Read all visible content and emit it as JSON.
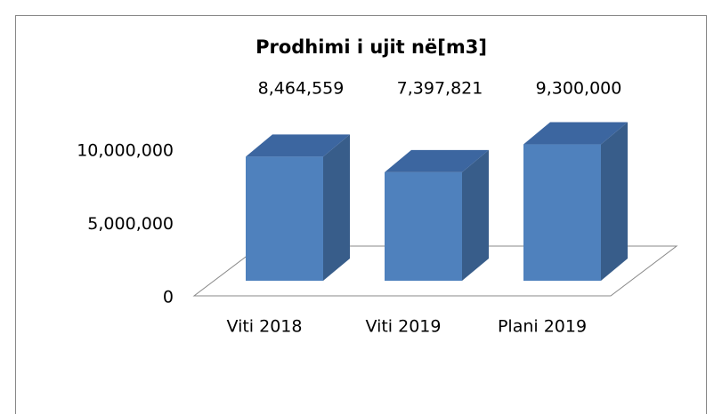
{
  "chart_data": {
    "type": "bar3d",
    "title": "Prodhimi i ujit në[m3]",
    "categories": [
      "Viti 2018",
      "Viti 2019",
      "Plani 2019"
    ],
    "values": [
      8464559,
      7397821,
      9300000
    ],
    "value_labels": [
      "8,464,559",
      "7,397,821",
      "9,300,000"
    ],
    "color": "#4f81bd",
    "ylim": [
      0,
      10000000
    ],
    "yticks": [
      0,
      {
        "value": 5000000,
        "label": "5,000,000"
      },
      {
        "value": 10000000,
        "label": "10,000,000"
      }
    ],
    "grid": false
  }
}
